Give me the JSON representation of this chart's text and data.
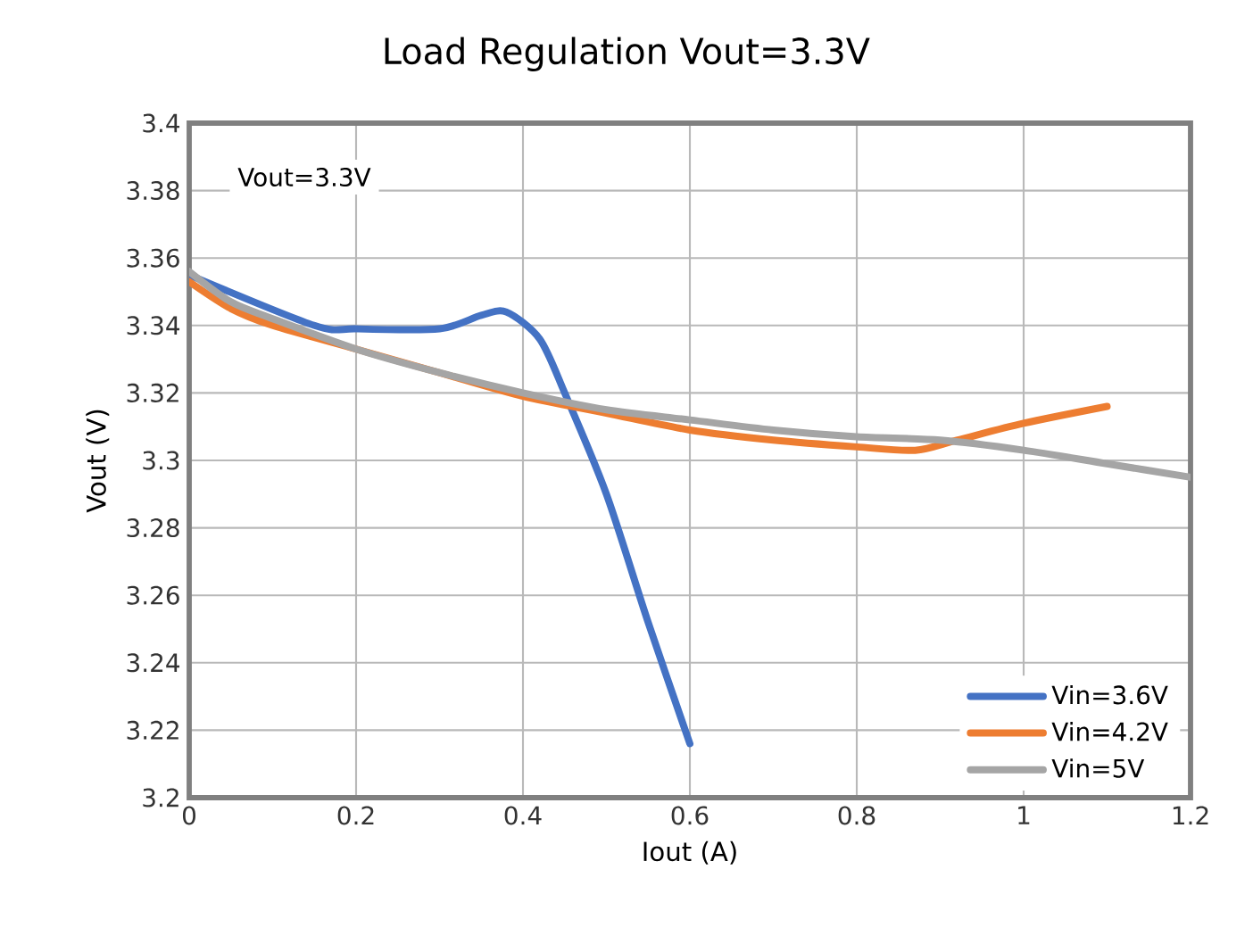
{
  "chart_data": {
    "type": "line",
    "title": "Load Regulation Vout=3.3V",
    "xlabel": "Iout (A)",
    "ylabel": "Vout (V)",
    "annotations": [
      "Vout=3.3V"
    ],
    "xlim": [
      0,
      1.2
    ],
    "ylim": [
      3.2,
      3.4
    ],
    "xticks": [
      0,
      0.2,
      0.4,
      0.6,
      0.8,
      1,
      1.2
    ],
    "yticks": [
      3.2,
      3.22,
      3.24,
      3.26,
      3.28,
      3.3,
      3.32,
      3.34,
      3.36,
      3.38,
      3.4
    ],
    "grid": true,
    "legend": "bottom right",
    "marker": "none",
    "line_style": "solid",
    "series": [
      {
        "name": "Vin=3.6V",
        "color": "#4472c4",
        "x": [
          0,
          0.15,
          0.2,
          0.3,
          0.35,
          0.38,
          0.42,
          0.45,
          0.5,
          0.55,
          0.6
        ],
        "values": [
          3.355,
          3.34,
          3.339,
          3.339,
          3.343,
          3.344,
          3.336,
          3.32,
          3.29,
          3.252,
          3.216
        ]
      },
      {
        "name": "Vin=4.2V",
        "color": "#ed7d31",
        "x": [
          0,
          0.05,
          0.1,
          0.2,
          0.3,
          0.4,
          0.5,
          0.6,
          0.7,
          0.8,
          0.87,
          0.92,
          1.0,
          1.1
        ],
        "values": [
          3.353,
          3.345,
          3.34,
          3.333,
          3.326,
          3.319,
          3.314,
          3.309,
          3.306,
          3.304,
          3.303,
          3.306,
          3.311,
          3.316
        ]
      },
      {
        "name": "Vin=5V",
        "color": "#a5a5a5",
        "x": [
          0,
          0.05,
          0.1,
          0.2,
          0.3,
          0.4,
          0.5,
          0.6,
          0.7,
          0.8,
          0.9,
          1.0,
          1.1,
          1.2
        ],
        "values": [
          3.356,
          3.347,
          3.342,
          3.333,
          3.326,
          3.32,
          3.315,
          3.312,
          3.309,
          3.307,
          3.306,
          3.303,
          3.299,
          3.295
        ]
      }
    ]
  }
}
